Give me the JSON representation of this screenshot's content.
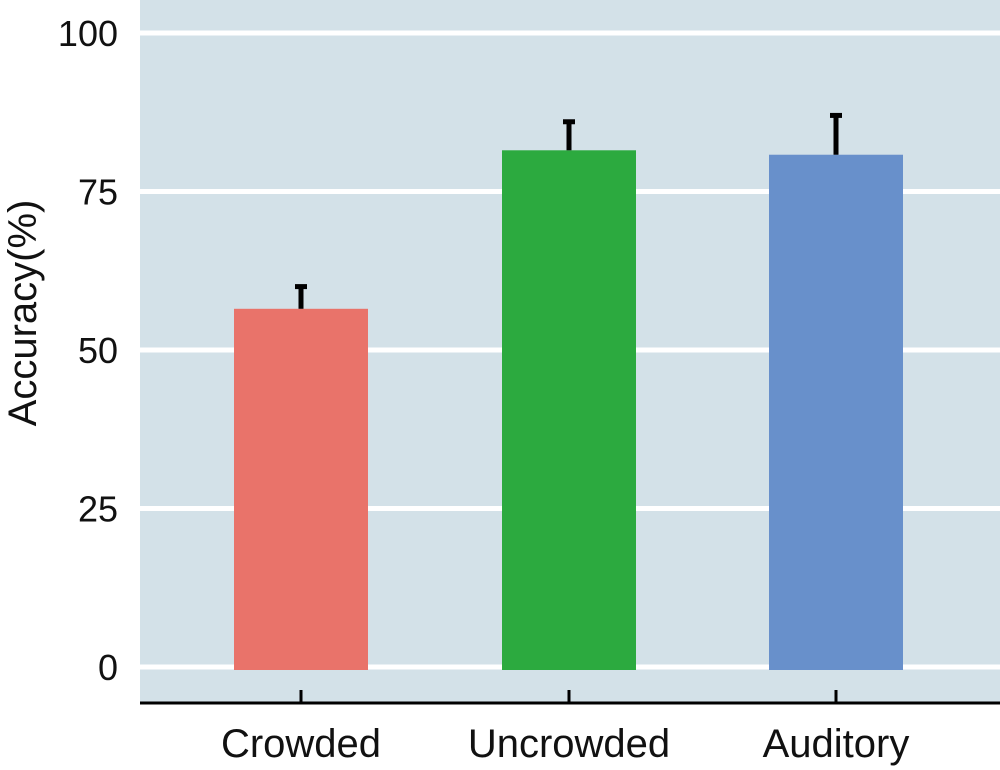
{
  "chart_data": {
    "type": "bar",
    "title": "",
    "xlabel": "",
    "ylabel": "Accuracy(%)",
    "categories": [
      "Crowded",
      "Uncrowded",
      "Auditory"
    ],
    "values": [
      56.5,
      81.5,
      80.8
    ],
    "error_bars": [
      3.5,
      4.5,
      6.2
    ],
    "colors": [
      "#e9736a",
      "#2caa3f",
      "#6890cb"
    ],
    "ylim": [
      -5,
      105
    ],
    "yticks": [
      0,
      25,
      50,
      75,
      100
    ],
    "ytick_labels": [
      "0",
      "25",
      "50",
      "75",
      "100"
    ],
    "grid": true,
    "background": "#d3e1e8",
    "legend": "none"
  }
}
